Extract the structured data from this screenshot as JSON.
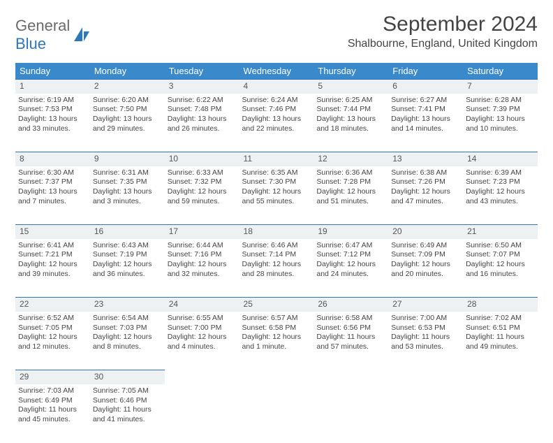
{
  "logo": {
    "general": "General",
    "blue": "Blue"
  },
  "title": "September 2024",
  "location": "Shalbourne, England, United Kingdom",
  "daynames": [
    "Sunday",
    "Monday",
    "Tuesday",
    "Wednesday",
    "Thursday",
    "Friday",
    "Saturday"
  ],
  "colors": {
    "header_bg": "#3a8acb",
    "header_text": "#ffffff",
    "row_band": "#eef1f4",
    "row_rule": "#2e77b8",
    "text": "#444444"
  },
  "weeks": [
    [
      {
        "n": "1",
        "sr": "Sunrise: 6:19 AM",
        "ss": "Sunset: 7:53 PM",
        "d1": "Daylight: 13 hours",
        "d2": "and 33 minutes."
      },
      {
        "n": "2",
        "sr": "Sunrise: 6:20 AM",
        "ss": "Sunset: 7:50 PM",
        "d1": "Daylight: 13 hours",
        "d2": "and 29 minutes."
      },
      {
        "n": "3",
        "sr": "Sunrise: 6:22 AM",
        "ss": "Sunset: 7:48 PM",
        "d1": "Daylight: 13 hours",
        "d2": "and 26 minutes."
      },
      {
        "n": "4",
        "sr": "Sunrise: 6:24 AM",
        "ss": "Sunset: 7:46 PM",
        "d1": "Daylight: 13 hours",
        "d2": "and 22 minutes."
      },
      {
        "n": "5",
        "sr": "Sunrise: 6:25 AM",
        "ss": "Sunset: 7:44 PM",
        "d1": "Daylight: 13 hours",
        "d2": "and 18 minutes."
      },
      {
        "n": "6",
        "sr": "Sunrise: 6:27 AM",
        "ss": "Sunset: 7:41 PM",
        "d1": "Daylight: 13 hours",
        "d2": "and 14 minutes."
      },
      {
        "n": "7",
        "sr": "Sunrise: 6:28 AM",
        "ss": "Sunset: 7:39 PM",
        "d1": "Daylight: 13 hours",
        "d2": "and 10 minutes."
      }
    ],
    [
      {
        "n": "8",
        "sr": "Sunrise: 6:30 AM",
        "ss": "Sunset: 7:37 PM",
        "d1": "Daylight: 13 hours",
        "d2": "and 7 minutes."
      },
      {
        "n": "9",
        "sr": "Sunrise: 6:31 AM",
        "ss": "Sunset: 7:35 PM",
        "d1": "Daylight: 13 hours",
        "d2": "and 3 minutes."
      },
      {
        "n": "10",
        "sr": "Sunrise: 6:33 AM",
        "ss": "Sunset: 7:32 PM",
        "d1": "Daylight: 12 hours",
        "d2": "and 59 minutes."
      },
      {
        "n": "11",
        "sr": "Sunrise: 6:35 AM",
        "ss": "Sunset: 7:30 PM",
        "d1": "Daylight: 12 hours",
        "d2": "and 55 minutes."
      },
      {
        "n": "12",
        "sr": "Sunrise: 6:36 AM",
        "ss": "Sunset: 7:28 PM",
        "d1": "Daylight: 12 hours",
        "d2": "and 51 minutes."
      },
      {
        "n": "13",
        "sr": "Sunrise: 6:38 AM",
        "ss": "Sunset: 7:26 PM",
        "d1": "Daylight: 12 hours",
        "d2": "and 47 minutes."
      },
      {
        "n": "14",
        "sr": "Sunrise: 6:39 AM",
        "ss": "Sunset: 7:23 PM",
        "d1": "Daylight: 12 hours",
        "d2": "and 43 minutes."
      }
    ],
    [
      {
        "n": "15",
        "sr": "Sunrise: 6:41 AM",
        "ss": "Sunset: 7:21 PM",
        "d1": "Daylight: 12 hours",
        "d2": "and 39 minutes."
      },
      {
        "n": "16",
        "sr": "Sunrise: 6:43 AM",
        "ss": "Sunset: 7:19 PM",
        "d1": "Daylight: 12 hours",
        "d2": "and 36 minutes."
      },
      {
        "n": "17",
        "sr": "Sunrise: 6:44 AM",
        "ss": "Sunset: 7:16 PM",
        "d1": "Daylight: 12 hours",
        "d2": "and 32 minutes."
      },
      {
        "n": "18",
        "sr": "Sunrise: 6:46 AM",
        "ss": "Sunset: 7:14 PM",
        "d1": "Daylight: 12 hours",
        "d2": "and 28 minutes."
      },
      {
        "n": "19",
        "sr": "Sunrise: 6:47 AM",
        "ss": "Sunset: 7:12 PM",
        "d1": "Daylight: 12 hours",
        "d2": "and 24 minutes."
      },
      {
        "n": "20",
        "sr": "Sunrise: 6:49 AM",
        "ss": "Sunset: 7:09 PM",
        "d1": "Daylight: 12 hours",
        "d2": "and 20 minutes."
      },
      {
        "n": "21",
        "sr": "Sunrise: 6:50 AM",
        "ss": "Sunset: 7:07 PM",
        "d1": "Daylight: 12 hours",
        "d2": "and 16 minutes."
      }
    ],
    [
      {
        "n": "22",
        "sr": "Sunrise: 6:52 AM",
        "ss": "Sunset: 7:05 PM",
        "d1": "Daylight: 12 hours",
        "d2": "and 12 minutes."
      },
      {
        "n": "23",
        "sr": "Sunrise: 6:54 AM",
        "ss": "Sunset: 7:03 PM",
        "d1": "Daylight: 12 hours",
        "d2": "and 8 minutes."
      },
      {
        "n": "24",
        "sr": "Sunrise: 6:55 AM",
        "ss": "Sunset: 7:00 PM",
        "d1": "Daylight: 12 hours",
        "d2": "and 4 minutes."
      },
      {
        "n": "25",
        "sr": "Sunrise: 6:57 AM",
        "ss": "Sunset: 6:58 PM",
        "d1": "Daylight: 12 hours",
        "d2": "and 1 minute."
      },
      {
        "n": "26",
        "sr": "Sunrise: 6:58 AM",
        "ss": "Sunset: 6:56 PM",
        "d1": "Daylight: 11 hours",
        "d2": "and 57 minutes."
      },
      {
        "n": "27",
        "sr": "Sunrise: 7:00 AM",
        "ss": "Sunset: 6:53 PM",
        "d1": "Daylight: 11 hours",
        "d2": "and 53 minutes."
      },
      {
        "n": "28",
        "sr": "Sunrise: 7:02 AM",
        "ss": "Sunset: 6:51 PM",
        "d1": "Daylight: 11 hours",
        "d2": "and 49 minutes."
      }
    ],
    [
      {
        "n": "29",
        "sr": "Sunrise: 7:03 AM",
        "ss": "Sunset: 6:49 PM",
        "d1": "Daylight: 11 hours",
        "d2": "and 45 minutes."
      },
      {
        "n": "30",
        "sr": "Sunrise: 7:05 AM",
        "ss": "Sunset: 6:46 PM",
        "d1": "Daylight: 11 hours",
        "d2": "and 41 minutes."
      },
      null,
      null,
      null,
      null,
      null
    ]
  ]
}
